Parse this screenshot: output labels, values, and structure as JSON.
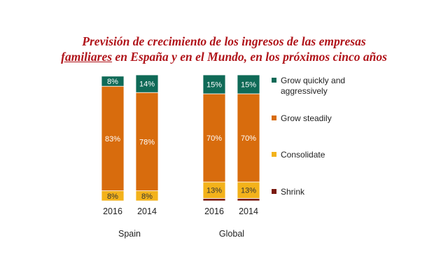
{
  "title": {
    "line1": "Previsión de crecimiento de los ingresos de las empresas",
    "line2_part1": "familiares",
    "line2_part2": "en España y en el Mundo, en los próximos cinco años"
  },
  "colors": {
    "grow_quickly": "#0f6a57",
    "grow_steadily": "#d86c0d",
    "consolidate": "#f3b21b",
    "shrink": "#7a1a10",
    "title": "#b0141a",
    "bar_label_light": "#ffffff",
    "bar_label_dark": "#333333"
  },
  "chart_data": {
    "type": "bar",
    "stacked": true,
    "groups": [
      {
        "name": "Spain",
        "categories": [
          "2016",
          "2014"
        ]
      },
      {
        "name": "Global",
        "categories": [
          "2016",
          "2014"
        ]
      }
    ],
    "series": [
      {
        "name": "Shrink",
        "key": "shrink",
        "values": [
          0,
          0,
          2,
          2
        ],
        "labels": [
          "",
          "",
          "",
          ""
        ]
      },
      {
        "name": "Consolidate",
        "key": "consolidate",
        "values": [
          8,
          8,
          13,
          13
        ],
        "labels": [
          "8%",
          "8%",
          "13%",
          "13%"
        ]
      },
      {
        "name": "Grow steadily",
        "key": "grow_steadily",
        "values": [
          83,
          78,
          70,
          70
        ],
        "labels": [
          "83%",
          "78%",
          "70%",
          "70%"
        ]
      },
      {
        "name": "Grow quickly and aggressively",
        "key": "grow_quickly",
        "values": [
          8,
          14,
          15,
          15
        ],
        "labels": [
          "8%",
          "14%",
          "15%",
          "15%"
        ]
      }
    ],
    "legend": [
      {
        "line1": "Grow quickly and",
        "line2": "aggressively",
        "key": "grow_quickly"
      },
      {
        "line1": "Grow steadily",
        "key": "grow_steadily"
      },
      {
        "line1": "Consolidate",
        "key": "consolidate"
      },
      {
        "line1": "Shrink",
        "key": "shrink"
      }
    ],
    "legend_position": "right",
    "grid": false,
    "ylim": [
      0,
      100
    ]
  }
}
